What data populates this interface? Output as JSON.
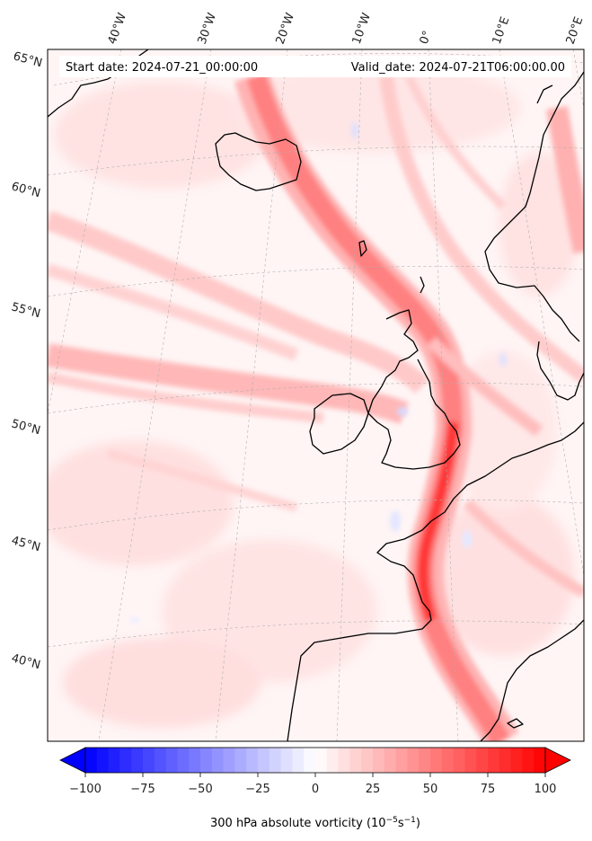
{
  "map": {
    "start_date": "Start date: 2024-07-21_00:00:00",
    "valid_date": "Valid_date: 2024-07-21T06:00:00.00",
    "lon_labels": [
      "40°W",
      "30°W",
      "20°W",
      "10°W",
      "0°",
      "10°E",
      "20°E"
    ],
    "lat_labels": [
      "65°N",
      "60°N",
      "55°N",
      "50°N",
      "45°N",
      "40°N"
    ],
    "field": "300 hPa absolute vorticity",
    "colors": {
      "coast": "#000000",
      "positive": "#ff0000",
      "negative": "#0000ff",
      "background": "#fff4f4"
    }
  },
  "colorbar": {
    "label_main": "300 hPa absolute vorticity (10",
    "label_exp1": "−5",
    "label_mid": "s",
    "label_exp2": "−1",
    "label_end": ")",
    "min": -100,
    "max": 100,
    "ticks": [
      "−100",
      "−75",
      "−50",
      "−25",
      "0",
      "25",
      "50",
      "75",
      "100"
    ],
    "extend": "both",
    "cmap": "bwr"
  }
}
